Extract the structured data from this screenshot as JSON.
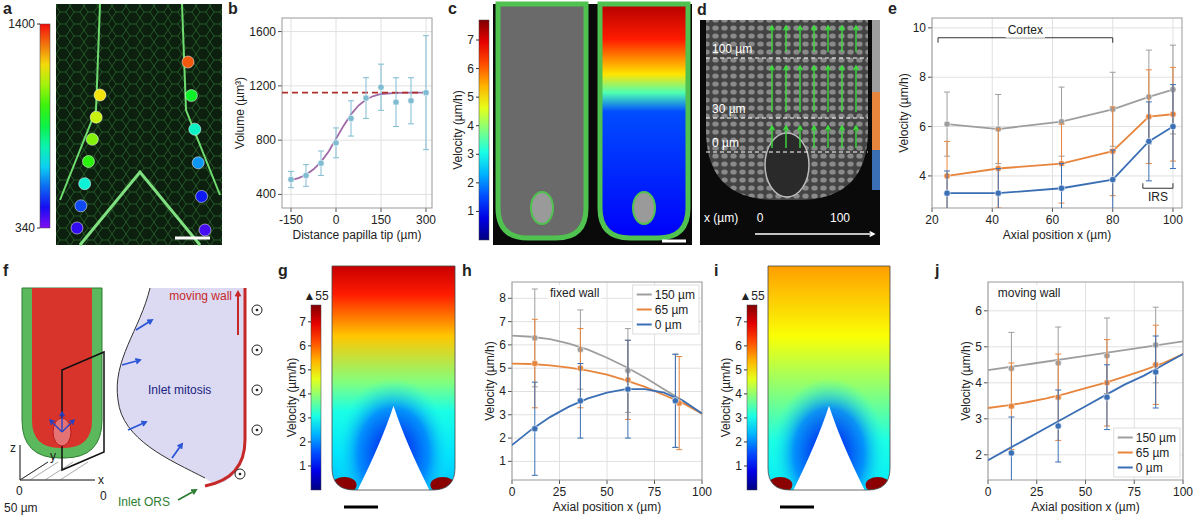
{
  "chart_data": [
    {
      "panel": "a",
      "type": "image",
      "colorbar_lim": [
        340,
        1400
      ],
      "colorbar_ticks": [
        340,
        1400
      ],
      "series": [
        {
          "values": [
            1180,
            1120,
            1050,
            960,
            720,
            520,
            420
          ]
        },
        {
          "values": [
            1320,
            900,
            740,
            600,
            470,
            400
          ]
        }
      ]
    },
    {
      "panel": "b",
      "type": "scatter",
      "xlabel": "Distance papilla tip (µm)",
      "ylabel": "Volume (µm³)",
      "xlim": [
        -180,
        320
      ],
      "ylim": [
        300,
        1700
      ],
      "xticks": [
        -150,
        0,
        150,
        300
      ],
      "yticks": [
        400,
        800,
        1200,
        1600
      ],
      "grid": true,
      "series": [
        {
          "type": "line",
          "color": "#a06aa6",
          "x": [
            -150,
            -125,
            -100,
            -75,
            -50,
            -25,
            0,
            25,
            50,
            75,
            100,
            125,
            150,
            200,
            250,
            300
          ],
          "values": [
            505,
            520,
            545,
            585,
            640,
            715,
            810,
            905,
            990,
            1055,
            1100,
            1125,
            1140,
            1148,
            1150,
            1150
          ]
        },
        {
          "type": "line",
          "line_style": "dashed",
          "color": "#b0302a",
          "x": [
            -180,
            320
          ],
          "values": [
            1150,
            1150
          ]
        },
        {
          "type": "scatter",
          "marker": "circle",
          "color": "#7fbcd2",
          "x": [
            -150,
            -100,
            -50,
            0,
            50,
            100,
            150,
            200,
            250,
            300
          ],
          "values": [
            510,
            540,
            630,
            780,
            960,
            1110,
            1190,
            1080,
            1090,
            1150
          ],
          "errors": [
            60,
            80,
            90,
            110,
            130,
            150,
            170,
            180,
            170,
            420
          ]
        }
      ]
    },
    {
      "panel": "c",
      "type": "image",
      "colorbar_label": "Velocity (µm/h)",
      "colorbar_lim": [
        0,
        7.7
      ],
      "colorbar_ticks": [
        1,
        2,
        3,
        4,
        5,
        6,
        7
      ]
    },
    {
      "panel": "d",
      "type": "image",
      "colors": [
        "#9e9e9e",
        "#e8853d",
        "#3a6fb5"
      ],
      "annotations": [
        "100 µm",
        "30 µm",
        "0 µm",
        "x (µm)",
        "0",
        "100"
      ]
    },
    {
      "panel": "e",
      "type": "line",
      "marker": "circle",
      "xlabel": "Axial position x (µm)",
      "ylabel": "Velocity (µm/h)",
      "xlim": [
        20,
        103
      ],
      "ylim": [
        2.7,
        10.4
      ],
      "xticks": [
        20,
        40,
        60,
        80,
        100
      ],
      "yticks": [
        4,
        6,
        8,
        10
      ],
      "grid": true,
      "annotations": [
        {
          "text": "Cortex",
          "x": [
            22,
            80
          ],
          "y": 9.6
        },
        {
          "text": "IRS",
          "x": [
            90,
            100
          ],
          "y": 3.5
        }
      ],
      "series": [
        {
          "color": "#9e9e9e",
          "x": [
            25,
            42,
            63,
            80,
            92,
            100
          ],
          "values": [
            6.1,
            5.9,
            6.2,
            6.7,
            7.2,
            7.5
          ],
          "errors": [
            1.3,
            1.4,
            1.4,
            1.5,
            1.9,
            1.8
          ]
        },
        {
          "color": "#e8853d",
          "x": [
            25,
            42,
            63,
            80,
            92,
            100
          ],
          "values": [
            4.0,
            4.3,
            4.5,
            5.0,
            6.4,
            6.5
          ],
          "errors": [
            1.4,
            1.6,
            1.6,
            1.8,
            1.9,
            1.9
          ]
        },
        {
          "color": "#3a6fb5",
          "x": [
            25,
            42,
            63,
            80,
            92,
            100
          ],
          "values": [
            3.3,
            3.3,
            3.5,
            3.85,
            5.4,
            6.0
          ],
          "errors": [
            0.9,
            1.0,
            1.0,
            1.2,
            1.6,
            1.7
          ]
        }
      ]
    },
    {
      "panel": "f",
      "type": "diagram",
      "annotations": [
        "moving wall",
        "Inlet mitosis",
        "Inlet ORS",
        "z",
        "y",
        "x",
        "0",
        "0",
        "50 µm"
      ]
    },
    {
      "panel": "g",
      "type": "image",
      "colorbar_label": "Velocity (µm/h)",
      "colorbar_lim": [
        0,
        7.7
      ],
      "colorbar_ticks": [
        1,
        2,
        3,
        4,
        5,
        6,
        7
      ],
      "colorbar_max_label": {
        "value": 55,
        "label": "▲55"
      }
    },
    {
      "panel": "h",
      "type": "line",
      "xlabel": "Axial position x (µm)",
      "ylabel": "Velocity (µm/h)",
      "xlim": [
        0,
        100
      ],
      "ylim": [
        0.2,
        8.7
      ],
      "xticks": [
        0,
        25,
        50,
        75,
        100
      ],
      "yticks": [
        1,
        2,
        3,
        4,
        5,
        6,
        7,
        8
      ],
      "grid": true,
      "legend": "upper right",
      "annotations": [
        "fixed wall"
      ],
      "series": [
        {
          "type": "line",
          "name": "150 µm",
          "color": "#9e9e9e",
          "x": [
            0,
            10,
            20,
            30,
            40,
            50,
            60,
            70,
            80,
            90,
            100
          ],
          "values": [
            6.4,
            6.35,
            6.25,
            6.05,
            5.8,
            5.45,
            5.05,
            4.6,
            4.1,
            3.6,
            3.05
          ]
        },
        {
          "type": "line",
          "name": "65 µm",
          "color": "#e8853d",
          "x": [
            0,
            10,
            20,
            30,
            40,
            50,
            60,
            70,
            80,
            90,
            100
          ],
          "values": [
            5.2,
            5.18,
            5.12,
            5.02,
            4.9,
            4.72,
            4.48,
            4.2,
            3.85,
            3.5,
            3.05
          ]
        },
        {
          "type": "line",
          "name": "0 µm",
          "color": "#3a6fb5",
          "x": [
            0,
            10,
            20,
            30,
            40,
            50,
            60,
            70,
            80,
            90,
            100
          ],
          "values": [
            1.7,
            2.35,
            2.9,
            3.35,
            3.7,
            3.95,
            4.1,
            4.1,
            3.95,
            3.6,
            3.05
          ]
        },
        {
          "type": "scatter",
          "marker": "circle",
          "color": "#9e9e9e",
          "x": [
            12,
            36,
            61,
            86
          ],
          "values": [
            6.3,
            5.8,
            4.9,
            3.6
          ],
          "errors": [
            2.1,
            1.7,
            1.8,
            2.0
          ]
        },
        {
          "type": "scatter",
          "marker": "circle",
          "color": "#e8853d",
          "x": [
            12,
            36,
            61,
            88
          ],
          "values": [
            5.2,
            5.0,
            4.5,
            3.5
          ],
          "errors": [
            1.9,
            1.7,
            1.7,
            2.0
          ]
        },
        {
          "type": "scatter",
          "marker": "circle",
          "color": "#3a6fb5",
          "x": [
            12,
            36,
            61,
            86
          ],
          "values": [
            2.4,
            3.6,
            4.1,
            3.6
          ],
          "errors": [
            2.0,
            1.6,
            2.1,
            2.0
          ]
        }
      ]
    },
    {
      "panel": "i",
      "type": "image",
      "colorbar_label": "Velocity (µm/h)",
      "colorbar_lim": [
        0,
        7.7
      ],
      "colorbar_ticks": [
        1,
        2,
        3,
        4,
        5,
        6,
        7
      ],
      "colorbar_max_label": {
        "value": 55,
        "label": "▲55"
      }
    },
    {
      "panel": "j",
      "type": "line",
      "xlabel": "Axial position x (µm)",
      "ylabel": "Velocity (µm/h)",
      "xlim": [
        0,
        100
      ],
      "ylim": [
        1.3,
        6.8
      ],
      "xticks": [
        0,
        25,
        50,
        75,
        100
      ],
      "yticks": [
        2,
        3,
        4,
        5,
        6
      ],
      "grid": true,
      "legend": "lower right",
      "annotations": [
        "moving wall"
      ],
      "series": [
        {
          "type": "line",
          "name": "150 µm",
          "color": "#9e9e9e",
          "x": [
            0,
            25,
            50,
            75,
            100
          ],
          "values": [
            4.35,
            4.55,
            4.75,
            4.95,
            5.15
          ]
        },
        {
          "type": "line",
          "name": "65 µm",
          "color": "#e8853d",
          "x": [
            0,
            10,
            20,
            30,
            40,
            50,
            60,
            70,
            80,
            90,
            100
          ],
          "values": [
            3.3,
            3.37,
            3.46,
            3.57,
            3.7,
            3.85,
            4.0,
            4.17,
            4.35,
            4.55,
            4.8
          ]
        },
        {
          "type": "line",
          "name": "0 µm",
          "color": "#3a6fb5",
          "x": [
            0,
            10,
            20,
            30,
            40,
            50,
            60,
            70,
            80,
            90,
            100
          ],
          "values": [
            1.85,
            2.15,
            2.45,
            2.75,
            3.05,
            3.35,
            3.65,
            3.95,
            4.2,
            4.5,
            4.8
          ]
        },
        {
          "type": "scatter",
          "marker": "circle",
          "color": "#9e9e9e",
          "x": [
            12,
            36,
            61,
            86
          ],
          "values": [
            4.4,
            4.55,
            4.75,
            5.05
          ],
          "errors": [
            1.0,
            1.0,
            1.05,
            1.05
          ]
        },
        {
          "type": "scatter",
          "marker": "circle",
          "color": "#e8853d",
          "x": [
            12,
            36,
            61,
            86
          ],
          "values": [
            3.35,
            3.6,
            4.0,
            4.5
          ],
          "errors": [
            1.2,
            1.2,
            1.2,
            1.1
          ]
        },
        {
          "type": "scatter",
          "marker": "circle",
          "color": "#3a6fb5",
          "x": [
            12,
            36,
            61,
            86
          ],
          "values": [
            2.05,
            2.8,
            3.6,
            4.3
          ],
          "errors": [
            1.0,
            1.0,
            0.9,
            1.0
          ]
        }
      ]
    }
  ]
}
